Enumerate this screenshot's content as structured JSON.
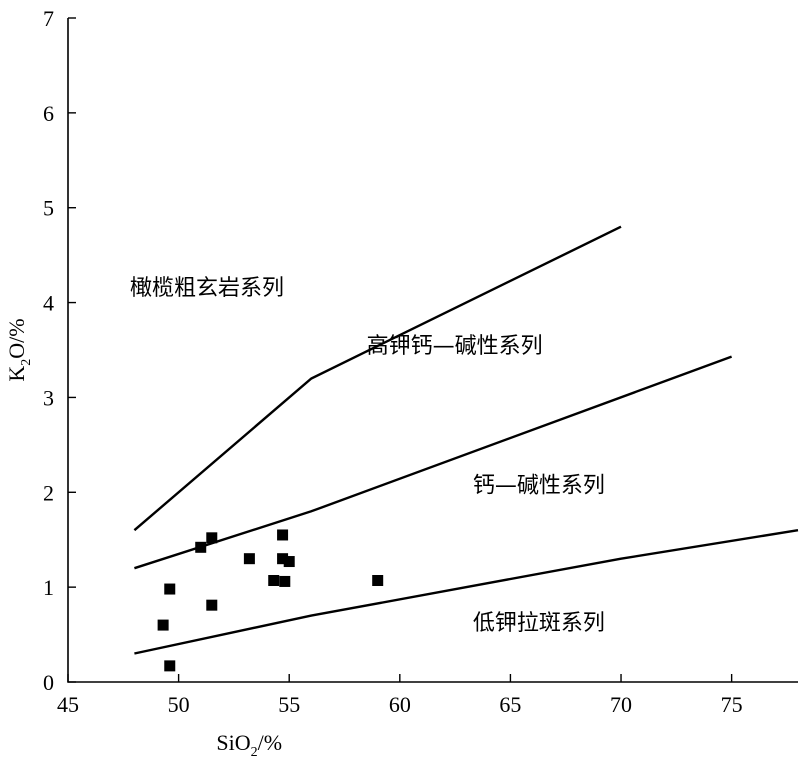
{
  "chart_data": {
    "type": "scatter",
    "title": "",
    "xlabel": "SiO2/%",
    "ylabel": "K2O/%",
    "xlabel_parts": {
      "main": "SiO",
      "sub": "2",
      "suffix": "/%"
    },
    "ylabel_parts": {
      "main": "K",
      "sub": "2",
      "suffix": "O/%"
    },
    "xlim": [
      45,
      78
    ],
    "ylim": [
      0,
      7
    ],
    "x_ticks": [
      45,
      50,
      55,
      60,
      65,
      70,
      75
    ],
    "y_ticks": [
      0,
      1,
      2,
      3,
      4,
      5,
      6,
      7
    ],
    "grid": false,
    "series": [
      {
        "points": [
          [
            49.3,
            0.6
          ],
          [
            49.6,
            0.17
          ],
          [
            49.6,
            0.98
          ],
          [
            51.0,
            1.42
          ],
          [
            51.5,
            1.52
          ],
          [
            51.5,
            0.81
          ],
          [
            53.2,
            1.3
          ],
          [
            54.3,
            1.07
          ],
          [
            54.7,
            1.55
          ],
          [
            54.7,
            1.3
          ],
          [
            54.8,
            1.06
          ],
          [
            55.0,
            1.27
          ],
          [
            59.0,
            1.07
          ]
        ]
      }
    ],
    "boundaries": [
      {
        "points": [
          [
            48,
            1.6
          ],
          [
            56,
            3.2
          ],
          [
            70,
            4.8
          ]
        ]
      },
      {
        "points": [
          [
            48,
            1.2
          ],
          [
            56,
            1.8
          ],
          [
            75,
            3.43
          ]
        ]
      },
      {
        "points": [
          [
            48,
            0.3
          ],
          [
            56,
            0.7
          ],
          [
            70,
            1.3
          ],
          [
            78,
            1.6
          ]
        ]
      }
    ],
    "region_labels": [
      {
        "text": "橄榄粗玄岩系列",
        "x": 47.8,
        "y": 4.08
      },
      {
        "text": "高钾钙—碱性系列",
        "x": 58.5,
        "y": 3.47
      },
      {
        "text": "钙—碱性系列",
        "x": 63.3,
        "y": 2.0
      },
      {
        "text": "低钾拉斑系列",
        "x": 63.3,
        "y": 0.55
      }
    ]
  }
}
